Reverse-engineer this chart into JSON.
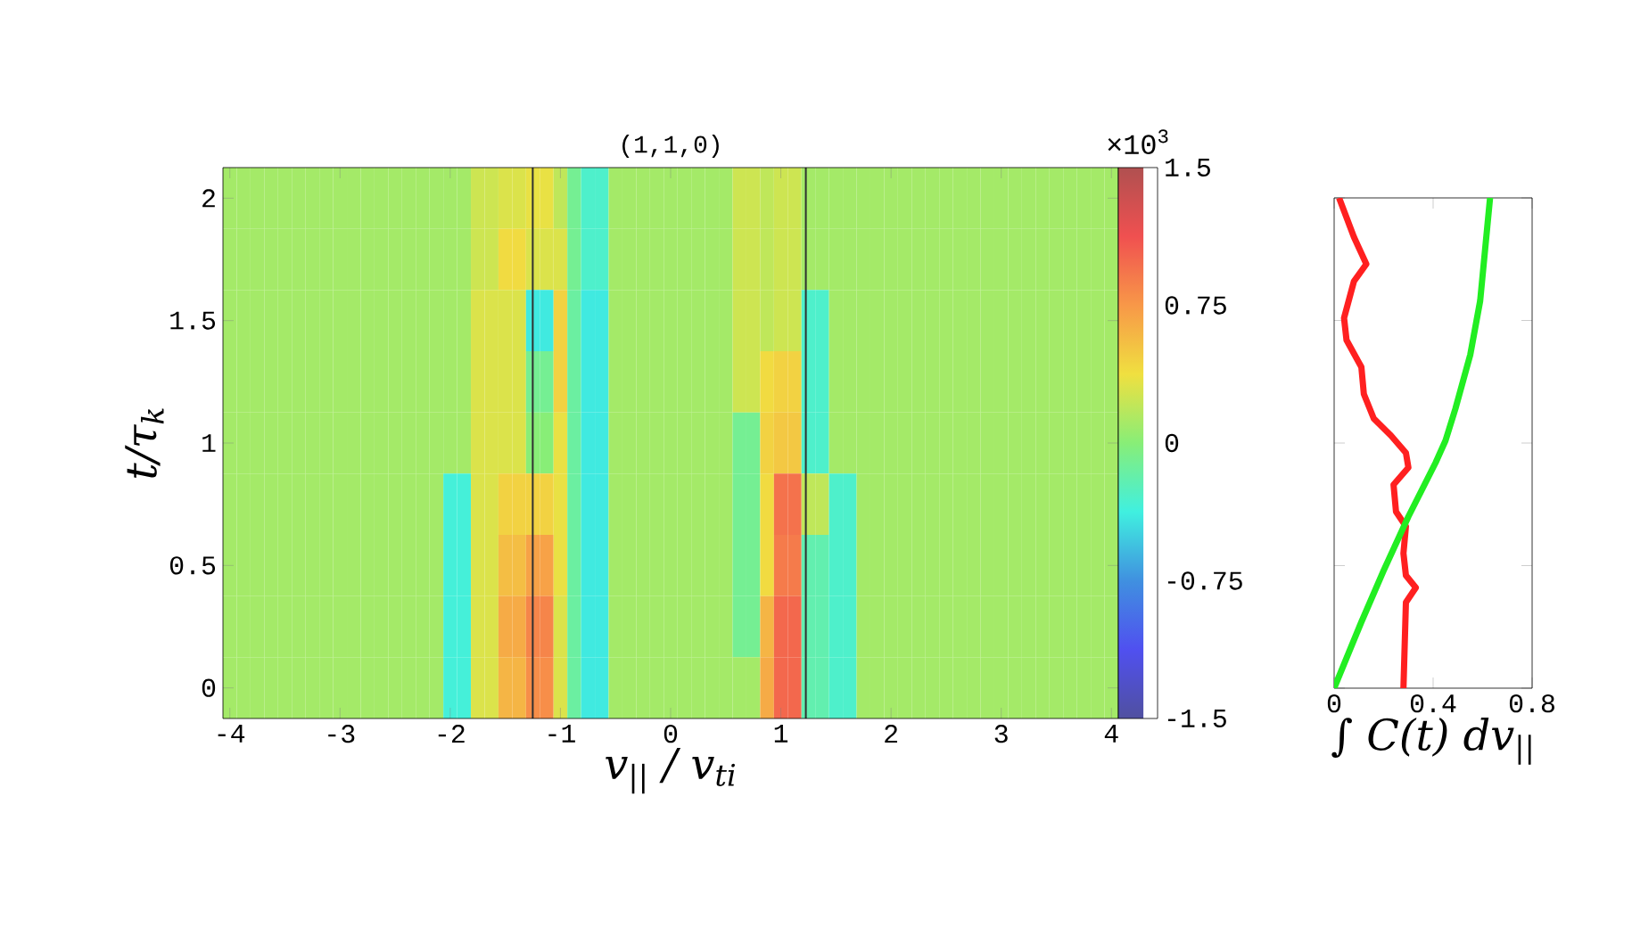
{
  "chart_data": [
    {
      "type": "heatmap",
      "title": "(1,1,0)",
      "xlabel": "v$_{||}$ / v$_{ti}$",
      "ylabel": "t/τ$_{k}$",
      "clabel": "×10$^{3}$",
      "categories": [
        "-4",
        null,
        null,
        null,
        null,
        null,
        null,
        null,
        "-3",
        null,
        null,
        null,
        null,
        null,
        null,
        null,
        "-2",
        null,
        null,
        null,
        null,
        null,
        null,
        null,
        "-1",
        null,
        null,
        null,
        null,
        null,
        null,
        null,
        "0",
        null,
        null,
        null,
        null,
        null,
        null,
        null,
        "1",
        null,
        null,
        null,
        null,
        null,
        null,
        null,
        "2",
        null,
        null,
        null,
        null,
        null,
        null,
        null,
        "3",
        null,
        null,
        null,
        null,
        null,
        null,
        null,
        "4"
      ],
      "y_categories": [
        "2",
        null,
        "1.5",
        null,
        "1",
        null,
        "0.5",
        null,
        "0"
      ],
      "cells": [
        [
          0.1,
          0.1,
          0.1,
          0.1,
          0.1,
          0.1,
          0.1,
          0.1,
          0.1,
          0.1,
          0.1,
          0.1,
          0.1,
          0.1,
          0.1,
          0.1,
          0.1,
          0.1,
          0.25,
          0.25,
          0.3,
          0.3,
          0.35,
          0.35,
          0.2,
          -0.1,
          -0.3,
          -0.3,
          0.1,
          0.1,
          0.1,
          0.1,
          0.1,
          0.1,
          0.1,
          0.1,
          0.1,
          0.25,
          0.25,
          0.2,
          0.25,
          0.25,
          0.1,
          0.1,
          0.1,
          0.1,
          0.1,
          0.1,
          0.1,
          0.1,
          0.1,
          0.1,
          0.1,
          0.1,
          0.1,
          0.1,
          0.1,
          0.1,
          0.1,
          0.1,
          0.1,
          0.1,
          0.1,
          0.1,
          0.1
        ],
        [
          0.1,
          0.1,
          0.1,
          0.1,
          0.1,
          0.1,
          0.1,
          0.1,
          0.1,
          0.1,
          0.1,
          0.1,
          0.1,
          0.1,
          0.1,
          0.1,
          0.1,
          0.1,
          0.25,
          0.25,
          0.4,
          0.4,
          0.3,
          0.3,
          0.3,
          -0.1,
          -0.3,
          -0.3,
          0.1,
          0.1,
          0.1,
          0.1,
          0.1,
          0.1,
          0.1,
          0.1,
          0.1,
          0.25,
          0.25,
          0.2,
          0.25,
          0.25,
          0.1,
          0.1,
          0.1,
          0.1,
          0.1,
          0.1,
          0.1,
          0.1,
          0.1,
          0.1,
          0.1,
          0.1,
          0.1,
          0.1,
          0.1,
          0.1,
          0.1,
          0.1,
          0.1,
          0.1,
          0.1,
          0.1,
          0.1
        ],
        [
          0.1,
          0.1,
          0.1,
          0.1,
          0.1,
          0.1,
          0.1,
          0.1,
          0.1,
          0.1,
          0.1,
          0.1,
          0.1,
          0.1,
          0.1,
          0.1,
          0.1,
          0.1,
          0.3,
          0.3,
          0.3,
          0.3,
          -0.4,
          -0.4,
          0.45,
          -0.15,
          -0.4,
          -0.4,
          0.1,
          0.1,
          0.1,
          0.1,
          0.1,
          0.1,
          0.1,
          0.1,
          0.1,
          0.25,
          0.25,
          0.2,
          0.25,
          0.25,
          -0.3,
          -0.3,
          0.1,
          0.1,
          0.1,
          0.1,
          0.1,
          0.1,
          0.1,
          0.1,
          0.1,
          0.1,
          0.1,
          0.1,
          0.1,
          0.1,
          0.1,
          0.1,
          0.1,
          0.1,
          0.1,
          0.1,
          0.1
        ],
        [
          0.1,
          0.1,
          0.1,
          0.1,
          0.1,
          0.1,
          0.1,
          0.1,
          0.1,
          0.1,
          0.1,
          0.1,
          0.1,
          0.1,
          0.1,
          0.1,
          0.1,
          0.1,
          0.3,
          0.3,
          0.3,
          0.3,
          -0.1,
          -0.1,
          0.45,
          -0.15,
          -0.4,
          -0.4,
          0.1,
          0.1,
          0.1,
          0.1,
          0.1,
          0.1,
          0.1,
          0.1,
          0.1,
          0.25,
          0.25,
          0.4,
          0.45,
          0.45,
          -0.3,
          -0.3,
          0.1,
          0.1,
          0.1,
          0.1,
          0.1,
          0.1,
          0.1,
          0.1,
          0.1,
          0.1,
          0.1,
          0.1,
          0.1,
          0.1,
          0.1,
          0.1,
          0.1,
          0.1,
          0.1,
          0.1,
          0.1
        ],
        [
          0.1,
          0.1,
          0.1,
          0.1,
          0.1,
          0.1,
          0.1,
          0.1,
          0.1,
          0.1,
          0.1,
          0.1,
          0.1,
          0.1,
          0.1,
          0.1,
          0.1,
          0.1,
          0.3,
          0.3,
          0.3,
          0.3,
          0.0,
          0.0,
          0.35,
          -0.15,
          -0.4,
          -0.4,
          0.1,
          0.1,
          0.1,
          0.1,
          0.1,
          0.1,
          0.1,
          0.1,
          0.1,
          -0.1,
          -0.1,
          0.45,
          0.5,
          0.5,
          -0.3,
          -0.3,
          0.1,
          0.1,
          0.1,
          0.1,
          0.1,
          0.1,
          0.1,
          0.1,
          0.1,
          0.1,
          0.1,
          0.1,
          0.1,
          0.1,
          0.1,
          0.1,
          0.1,
          0.1,
          0.1,
          0.1,
          0.1
        ],
        [
          0.1,
          0.1,
          0.1,
          0.1,
          0.1,
          0.1,
          0.1,
          0.1,
          0.1,
          0.1,
          0.1,
          0.1,
          0.1,
          0.1,
          0.1,
          0.1,
          -0.35,
          -0.35,
          0.3,
          0.3,
          0.45,
          0.45,
          0.45,
          0.45,
          0.35,
          -0.15,
          -0.4,
          -0.4,
          0.1,
          0.1,
          0.1,
          0.1,
          0.1,
          0.1,
          0.1,
          0.1,
          0.1,
          -0.1,
          -0.1,
          0.4,
          0.95,
          0.95,
          0.2,
          0.2,
          -0.3,
          -0.3,
          0.1,
          0.1,
          0.1,
          0.1,
          0.1,
          0.1,
          0.1,
          0.1,
          0.1,
          0.1,
          0.1,
          0.1,
          0.1,
          0.1,
          0.1,
          0.1,
          0.1,
          0.1,
          0.1
        ],
        [
          0.1,
          0.1,
          0.1,
          0.1,
          0.1,
          0.1,
          0.1,
          0.1,
          0.1,
          0.1,
          0.1,
          0.1,
          0.1,
          0.1,
          0.1,
          0.1,
          -0.35,
          -0.35,
          0.3,
          0.3,
          0.55,
          0.55,
          0.7,
          0.7,
          0.35,
          -0.15,
          -0.4,
          -0.4,
          0.1,
          0.1,
          0.1,
          0.1,
          0.1,
          0.1,
          0.1,
          0.1,
          0.1,
          -0.1,
          -0.1,
          0.4,
          0.9,
          0.9,
          -0.2,
          -0.2,
          -0.3,
          -0.3,
          0.1,
          0.1,
          0.1,
          0.1,
          0.1,
          0.1,
          0.1,
          0.1,
          0.1,
          0.1,
          0.1,
          0.1,
          0.1,
          0.1,
          0.1,
          0.1,
          0.1,
          0.1,
          0.1
        ],
        [
          0.1,
          0.1,
          0.1,
          0.1,
          0.1,
          0.1,
          0.1,
          0.1,
          0.1,
          0.1,
          0.1,
          0.1,
          0.1,
          0.1,
          0.1,
          0.1,
          -0.35,
          -0.35,
          0.3,
          0.3,
          0.65,
          0.65,
          0.85,
          0.85,
          0.3,
          -0.15,
          -0.4,
          -0.4,
          0.1,
          0.1,
          0.1,
          0.1,
          0.1,
          0.1,
          0.1,
          0.1,
          0.1,
          -0.1,
          -0.1,
          0.6,
          1.0,
          1.0,
          -0.2,
          -0.2,
          -0.3,
          -0.3,
          0.1,
          0.1,
          0.1,
          0.1,
          0.1,
          0.1,
          0.1,
          0.1,
          0.1,
          0.1,
          0.1,
          0.1,
          0.1,
          0.1,
          0.1,
          0.1,
          0.1,
          0.1,
          0.1
        ],
        [
          0.1,
          0.1,
          0.1,
          0.1,
          0.1,
          0.1,
          0.1,
          0.1,
          0.1,
          0.1,
          0.1,
          0.1,
          0.1,
          0.1,
          0.1,
          0.1,
          -0.35,
          -0.35,
          0.3,
          0.3,
          0.6,
          0.6,
          0.8,
          0.8,
          0.3,
          -0.15,
          -0.4,
          -0.4,
          0.1,
          0.1,
          0.1,
          0.1,
          0.1,
          0.1,
          0.1,
          0.1,
          0.1,
          0.1,
          0.1,
          0.65,
          1.0,
          1.0,
          -0.2,
          -0.2,
          -0.3,
          -0.3,
          0.1,
          0.1,
          0.1,
          0.1,
          0.1,
          0.1,
          0.1,
          0.1,
          0.1,
          0.1,
          0.1,
          0.1,
          0.1,
          0.1,
          0.1,
          0.1,
          0.1,
          0.1,
          0.1
        ]
      ],
      "clim": [
        -1.5,
        1.5
      ],
      "cticks": [
        -1.5,
        -0.75,
        0,
        0.75,
        1.5
      ]
    },
    {
      "type": "line",
      "xlabel": "∫ C(t) dv$_{||}$",
      "series": [
        {
          "color": "#ff2020",
          "x": [
            0.02,
            0.08,
            0.13,
            0.08,
            0.04,
            0.05,
            0.11,
            0.12,
            0.16,
            0.23,
            0.29,
            0.3,
            0.24,
            0.25,
            0.29,
            0.28,
            0.29,
            0.33,
            0.29,
            0.28
          ],
          "values": [
            2.0,
            1.84,
            1.73,
            1.66,
            1.51,
            1.42,
            1.31,
            1.2,
            1.1,
            1.03,
            0.96,
            0.9,
            0.83,
            0.72,
            0.66,
            0.55,
            0.46,
            0.41,
            0.35,
            0
          ]
        },
        {
          "color": "#22ee22",
          "x": [
            0.63,
            0.61,
            0.59,
            0.55,
            0.49,
            0.45,
            0.41,
            0.3,
            0.2,
            0.11,
            0
          ],
          "values": [
            2.0,
            1.79,
            1.58,
            1.36,
            1.14,
            1.01,
            0.92,
            0.7,
            0.48,
            0.27,
            0
          ]
        }
      ],
      "xlim": [
        0,
        0.8
      ],
      "xticks": [
        0,
        0.4,
        0.8
      ],
      "ylim": [
        0,
        2
      ],
      "yticks": [
        0,
        0.5,
        1,
        1.5,
        2
      ],
      "tick_labels": "x"
    }
  ]
}
